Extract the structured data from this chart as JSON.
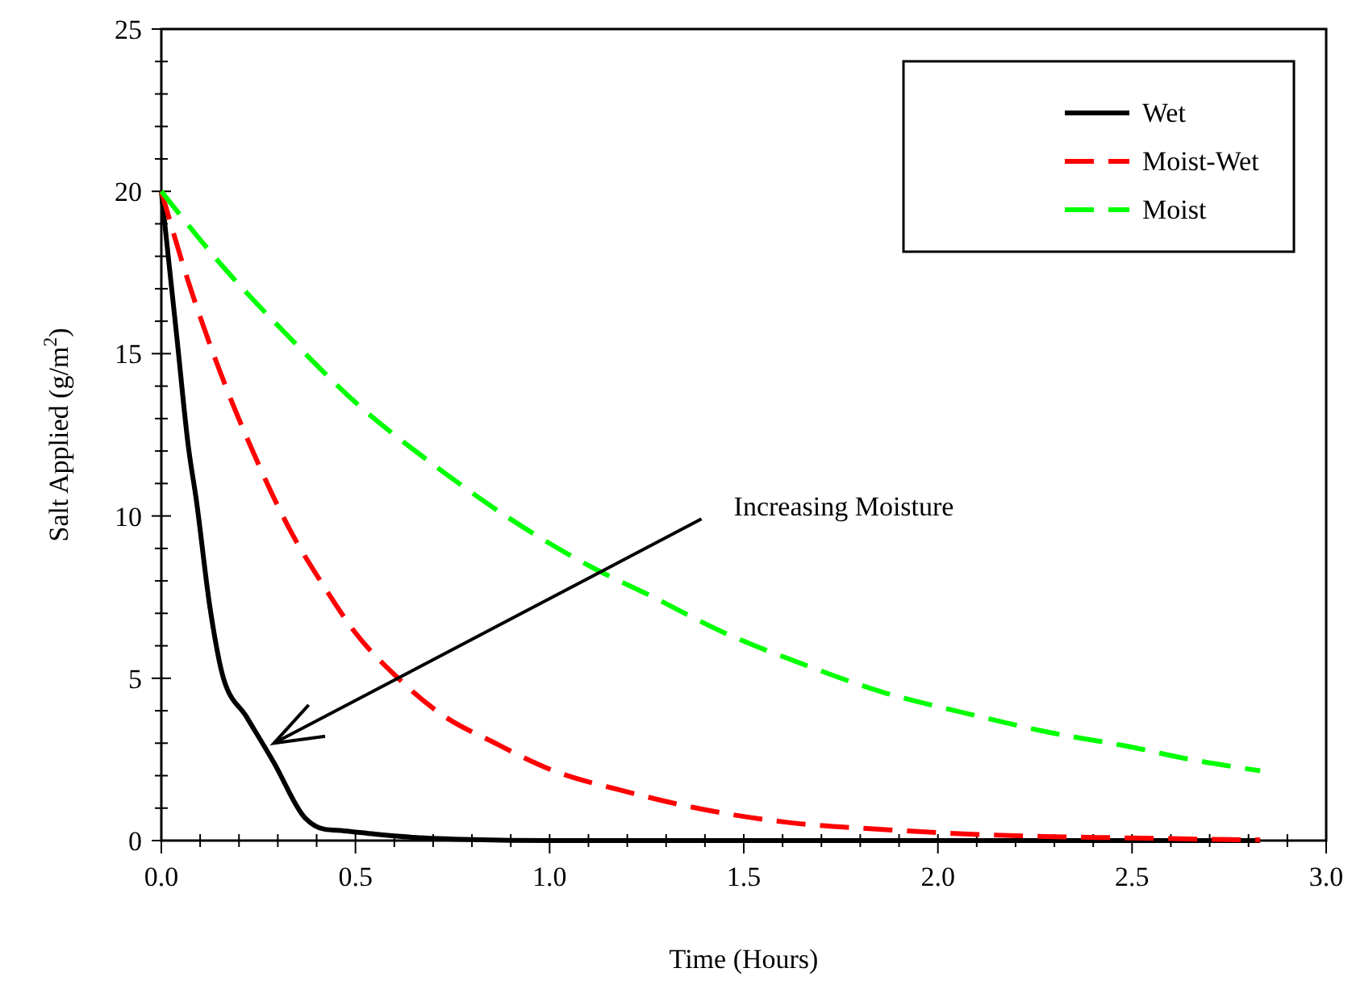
{
  "chart_data": {
    "type": "line",
    "xlabel": "Time (Hours)",
    "ylabel": "Salt Applied (g/m$^{2}$)",
    "xlim": [
      0,
      3
    ],
    "ylim": [
      0,
      25
    ],
    "xticks": [
      {
        "value": 0,
        "label": "0.0"
      },
      {
        "value": 0.1,
        "label": null
      },
      {
        "value": 0.2,
        "label": null
      },
      {
        "value": 0.3,
        "label": null
      },
      {
        "value": 0.4,
        "label": null
      },
      {
        "value": 0.5,
        "label": "0.5"
      },
      {
        "value": 0.6,
        "label": null
      },
      {
        "value": 0.7,
        "label": null
      },
      {
        "value": 0.8,
        "label": null
      },
      {
        "value": 0.9,
        "label": null
      },
      {
        "value": 1,
        "label": "1.0"
      },
      {
        "value": 1.1,
        "label": null
      },
      {
        "value": 1.2,
        "label": null
      },
      {
        "value": 1.3,
        "label": null
      },
      {
        "value": 1.4,
        "label": null
      },
      {
        "value": 1.5,
        "label": "1.5"
      },
      {
        "value": 1.6,
        "label": null
      },
      {
        "value": 1.7,
        "label": null
      },
      {
        "value": 1.8,
        "label": null
      },
      {
        "value": 1.9,
        "label": null
      },
      {
        "value": 2,
        "label": "2.0"
      },
      {
        "value": 2.1,
        "label": null
      },
      {
        "value": 2.2,
        "label": null
      },
      {
        "value": 2.3,
        "label": null
      },
      {
        "value": 2.4,
        "label": null
      },
      {
        "value": 2.5,
        "label": "2.5"
      },
      {
        "value": 2.6,
        "label": null
      },
      {
        "value": 2.7,
        "label": null
      },
      {
        "value": 2.8,
        "label": null
      },
      {
        "value": 2.9,
        "label": null
      },
      {
        "value": 3,
        "label": "3.0"
      }
    ],
    "yticks": [
      0,
      {
        "value": 1,
        "label": null
      },
      {
        "value": 2,
        "label": null
      },
      {
        "value": 3,
        "label": null
      },
      {
        "value": 4,
        "label": null
      },
      5,
      {
        "value": 6,
        "label": null
      },
      {
        "value": 7,
        "label": null
      },
      {
        "value": 8,
        "label": null
      },
      {
        "value": 9,
        "label": null
      },
      10,
      {
        "value": 11,
        "label": null
      },
      {
        "value": 12,
        "label": null
      },
      {
        "value": 13,
        "label": null
      },
      {
        "value": 14,
        "label": null
      },
      15,
      {
        "value": 16,
        "label": null
      },
      {
        "value": 17,
        "label": null
      },
      {
        "value": 18,
        "label": null
      },
      {
        "value": 19,
        "label": null
      },
      20,
      {
        "value": 21,
        "label": null
      },
      {
        "value": 22,
        "label": null
      },
      {
        "value": 23,
        "label": null
      },
      {
        "value": 24,
        "label": null
      },
      25
    ],
    "grid": false,
    "legend": "top right",
    "marker": "none",
    "series": [
      {
        "name": "Wet",
        "color": "#000000",
        "line_style": "solid",
        "x": [
          0,
          0.04,
          0.07,
          0.09,
          0.125,
          0.16,
          0.22,
          0.29,
          0.37,
          0.42,
          0.47,
          0.55,
          0.65,
          0.8,
          1.0,
          1.5,
          2.0,
          2.5,
          2.83
        ],
        "values": [
          20,
          15.5,
          12.1,
          10.5,
          7.2,
          5,
          3.8,
          2.4,
          0.7,
          0.35,
          0.3,
          0.2,
          0.1,
          0.03,
          0,
          0,
          0,
          0,
          0
        ]
      },
      {
        "name": "Moist-Wet",
        "color": "#ff0000",
        "line_style": "dashed",
        "x": [
          0,
          0.07,
          0.14,
          0.25,
          0.33,
          0.415,
          0.5,
          0.61,
          0.72,
          0.86,
          1.0,
          1.2,
          1.4,
          1.62,
          1.85,
          2.08,
          2.3,
          2.5,
          2.7,
          2.83
        ],
        "values": [
          20,
          17.2,
          14.8,
          11.6,
          9.6,
          7.9,
          6.4,
          5,
          3.9,
          3,
          2.2,
          1.5,
          0.95,
          0.55,
          0.35,
          0.2,
          0.12,
          0.08,
          0.04,
          0.02
        ]
      },
      {
        "name": "Moist",
        "color": "#00ff00",
        "line_style": "dashed",
        "x": [
          0,
          0.15,
          0.33,
          0.5,
          0.71,
          0.9,
          1.12,
          1.25,
          1.45,
          1.66,
          1.85,
          2.08,
          2.28,
          2.49,
          2.65,
          2.83
        ],
        "values": [
          20,
          17.8,
          15.5,
          13.5,
          11.5,
          9.9,
          8.35,
          7.6,
          6.4,
          5.4,
          4.6,
          3.9,
          3.35,
          2.9,
          2.5,
          2.15
        ]
      }
    ],
    "annotations": [
      {
        "text": "Increasing Moisture",
        "x": 0.29,
        "y": 3
      }
    ]
  }
}
